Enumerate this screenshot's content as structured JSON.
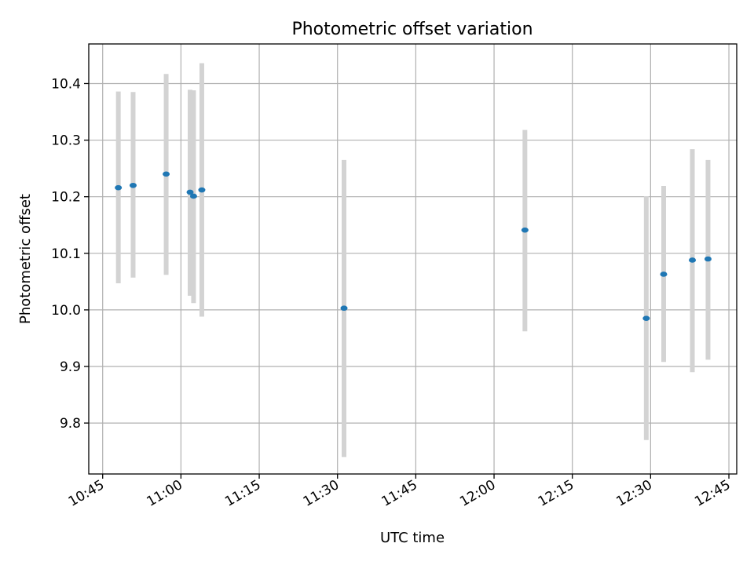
{
  "chart_data": {
    "type": "scatter",
    "title": "Photometric offset variation",
    "xlabel": "UTC time",
    "ylabel": "Photometric offset",
    "x_tick_labels": [
      "10:45",
      "11:00",
      "11:15",
      "11:30",
      "11:45",
      "12:00",
      "12:15",
      "12:30",
      "12:45"
    ],
    "y_tick_labels": [
      "9.8",
      "9.9",
      "10.0",
      "10.1",
      "10.2",
      "10.3",
      "10.4"
    ],
    "x_ticks": [
      "10:45",
      "11:00",
      "11:15",
      "11:30",
      "11:45",
      "12:00",
      "12:15",
      "12:30",
      "12:45"
    ],
    "y_ticks": [
      9.8,
      9.9,
      10.0,
      10.1,
      10.2,
      10.3,
      10.4
    ],
    "xlim": [
      "10:42:20",
      "12:46:30"
    ],
    "ylim": [
      9.71,
      10.47
    ],
    "grid": true,
    "colors": {
      "points": "#1f77b4",
      "error_bars": "#d3d3d3"
    },
    "points": [
      {
        "x": "10:48:00",
        "y": 10.216,
        "ylow": 10.047,
        "yhigh": 10.386
      },
      {
        "x": "10:50:50",
        "y": 10.22,
        "ylow": 10.057,
        "yhigh": 10.385
      },
      {
        "x": "10:57:10",
        "y": 10.24,
        "ylow": 10.062,
        "yhigh": 10.417
      },
      {
        "x": "11:01:45",
        "y": 10.208,
        "ylow": 10.025,
        "yhigh": 10.389
      },
      {
        "x": "11:02:25",
        "y": 10.201,
        "ylow": 10.012,
        "yhigh": 10.388
      },
      {
        "x": "11:04:00",
        "y": 10.212,
        "ylow": 9.988,
        "yhigh": 10.436
      },
      {
        "x": "11:31:15",
        "y": 10.003,
        "ylow": 9.74,
        "yhigh": 10.265
      },
      {
        "x": "12:05:55",
        "y": 10.141,
        "ylow": 9.962,
        "yhigh": 10.318
      },
      {
        "x": "12:29:10",
        "y": 9.985,
        "ylow": 9.77,
        "yhigh": 10.201
      },
      {
        "x": "12:32:30",
        "y": 10.063,
        "ylow": 9.908,
        "yhigh": 10.219
      },
      {
        "x": "12:38:00",
        "y": 10.088,
        "ylow": 9.89,
        "yhigh": 10.284
      },
      {
        "x": "12:41:00",
        "y": 10.09,
        "ylow": 9.912,
        "yhigh": 10.265
      }
    ]
  }
}
